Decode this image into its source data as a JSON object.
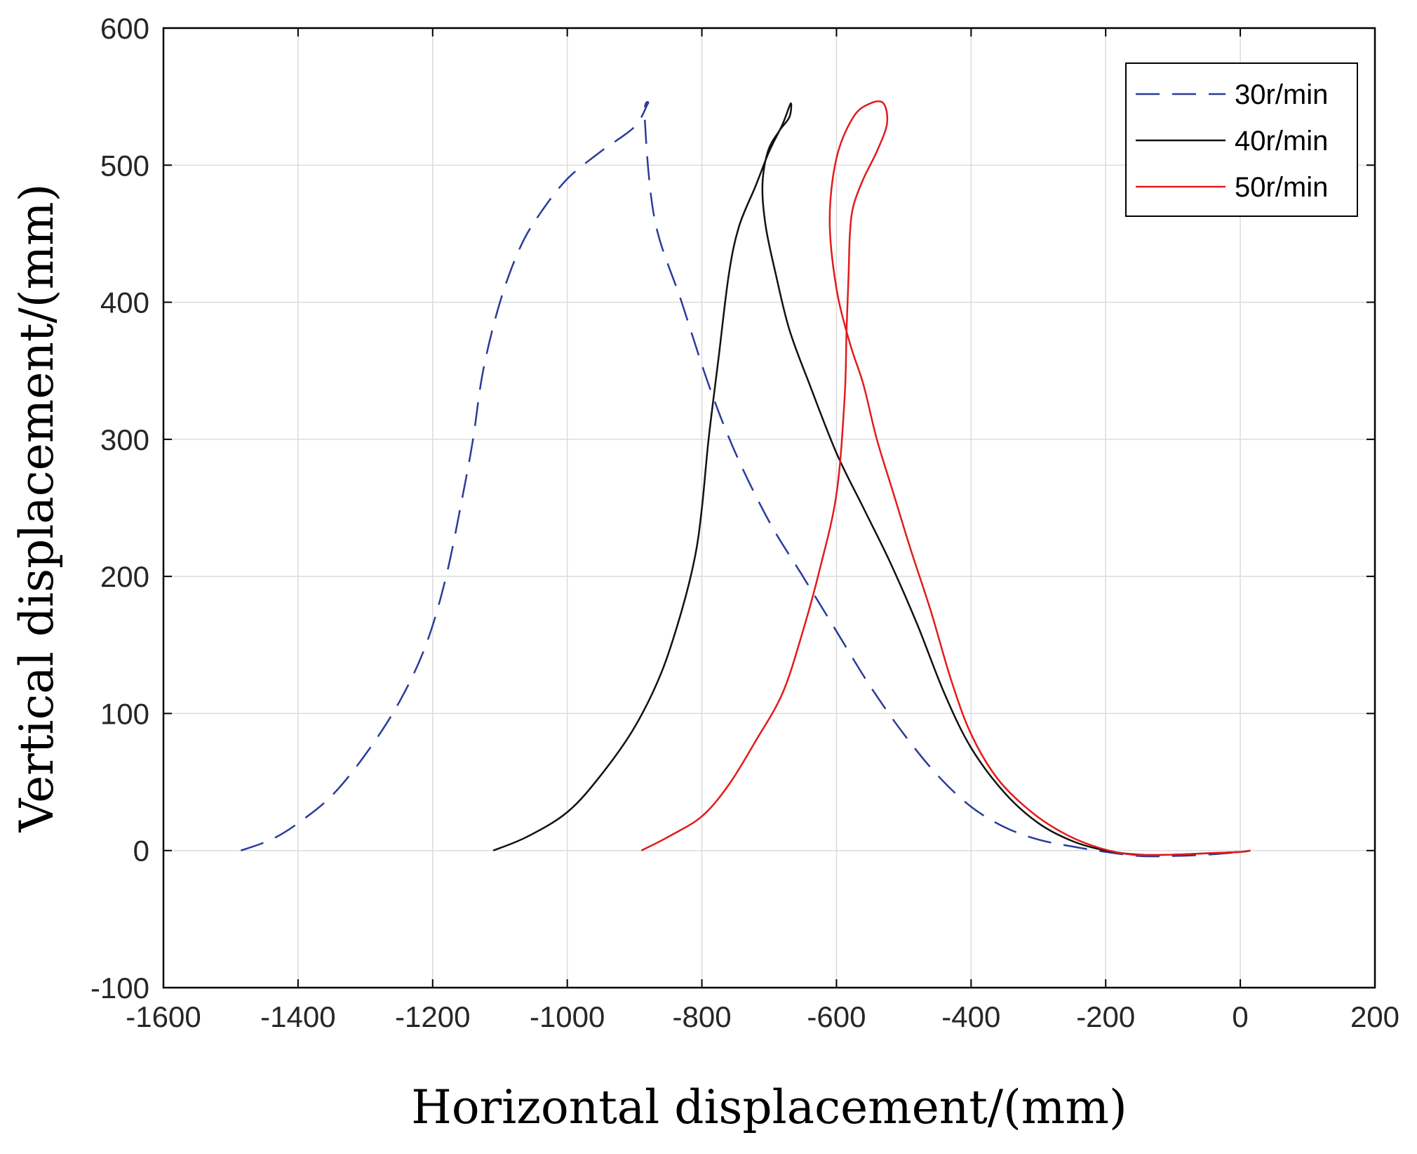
{
  "chart_data": {
    "type": "line",
    "title": "",
    "xlabel": "Horizontal displacement/(mm)",
    "ylabel": "Vertical displacement/(mm)",
    "xlim": [
      -1600,
      200
    ],
    "ylim": [
      -100,
      600
    ],
    "xticks": [
      -1600,
      -1400,
      -1200,
      -1000,
      -800,
      -600,
      -400,
      -200,
      0,
      200
    ],
    "yticks": [
      -100,
      0,
      100,
      200,
      300,
      400,
      500,
      600
    ],
    "grid": true,
    "legend_position": "top-right",
    "series": [
      {
        "name": "30r/min",
        "color": "#2a3b9a",
        "dash": "dashed",
        "points": [
          [
            -1485,
            0
          ],
          [
            -1440,
            8
          ],
          [
            -1400,
            20
          ],
          [
            -1350,
            40
          ],
          [
            -1300,
            70
          ],
          [
            -1250,
            108
          ],
          [
            -1210,
            150
          ],
          [
            -1180,
            200
          ],
          [
            -1155,
            260
          ],
          [
            -1140,
            300
          ],
          [
            -1125,
            350
          ],
          [
            -1100,
            400
          ],
          [
            -1070,
            440
          ],
          [
            -1040,
            465
          ],
          [
            -1000,
            490
          ],
          [
            -950,
            510
          ],
          [
            -900,
            528
          ],
          [
            -880,
            545
          ],
          [
            -885,
            535
          ],
          [
            -870,
            460
          ],
          [
            -830,
            400
          ],
          [
            -790,
            340
          ],
          [
            -750,
            290
          ],
          [
            -700,
            240
          ],
          [
            -650,
            200
          ],
          [
            -600,
            160
          ],
          [
            -550,
            120
          ],
          [
            -500,
            85
          ],
          [
            -450,
            55
          ],
          [
            -400,
            32
          ],
          [
            -350,
            17
          ],
          [
            -300,
            8
          ],
          [
            -250,
            3
          ],
          [
            -200,
            -1
          ],
          [
            -150,
            -4
          ],
          [
            -100,
            -4
          ],
          [
            -50,
            -3
          ],
          [
            0,
            -1
          ],
          [
            15,
            0
          ]
        ]
      },
      {
        "name": "40r/min",
        "color": "#111111",
        "dash": "solid",
        "points": [
          [
            -1110,
            0
          ],
          [
            -1060,
            10
          ],
          [
            -1000,
            28
          ],
          [
            -950,
            55
          ],
          [
            -900,
            90
          ],
          [
            -860,
            130
          ],
          [
            -830,
            175
          ],
          [
            -810,
            215
          ],
          [
            -800,
            250
          ],
          [
            -790,
            300
          ],
          [
            -775,
            360
          ],
          [
            -760,
            420
          ],
          [
            -745,
            455
          ],
          [
            -720,
            485
          ],
          [
            -700,
            510
          ],
          [
            -680,
            530
          ],
          [
            -668,
            545
          ],
          [
            -670,
            535
          ],
          [
            -685,
            525
          ],
          [
            -702,
            510
          ],
          [
            -710,
            485
          ],
          [
            -705,
            455
          ],
          [
            -690,
            420
          ],
          [
            -670,
            380
          ],
          [
            -640,
            340
          ],
          [
            -600,
            290
          ],
          [
            -560,
            250
          ],
          [
            -520,
            210
          ],
          [
            -480,
            165
          ],
          [
            -440,
            115
          ],
          [
            -400,
            75
          ],
          [
            -350,
            42
          ],
          [
            -300,
            20
          ],
          [
            -250,
            7
          ],
          [
            -200,
            0
          ],
          [
            -150,
            -3
          ],
          [
            -100,
            -3
          ],
          [
            -50,
            -2
          ],
          [
            0,
            -1
          ],
          [
            15,
            0
          ]
        ]
      },
      {
        "name": "50r/min",
        "color": "#e41a1a",
        "dash": "solid",
        "points": [
          [
            -890,
            0
          ],
          [
            -850,
            10
          ],
          [
            -800,
            25
          ],
          [
            -760,
            48
          ],
          [
            -720,
            80
          ],
          [
            -680,
            115
          ],
          [
            -650,
            160
          ],
          [
            -625,
            205
          ],
          [
            -600,
            260
          ],
          [
            -588,
            330
          ],
          [
            -585,
            380
          ],
          [
            -582,
            420
          ],
          [
            -580,
            450
          ],
          [
            -575,
            470
          ],
          [
            -560,
            490
          ],
          [
            -540,
            510
          ],
          [
            -525,
            530
          ],
          [
            -530,
            545
          ],
          [
            -550,
            545
          ],
          [
            -575,
            535
          ],
          [
            -600,
            505
          ],
          [
            -610,
            460
          ],
          [
            -600,
            410
          ],
          [
            -580,
            370
          ],
          [
            -560,
            340
          ],
          [
            -540,
            300
          ],
          [
            -515,
            260
          ],
          [
            -490,
            220
          ],
          [
            -460,
            175
          ],
          [
            -430,
            125
          ],
          [
            -400,
            85
          ],
          [
            -360,
            52
          ],
          [
            -310,
            28
          ],
          [
            -260,
            12
          ],
          [
            -210,
            2
          ],
          [
            -160,
            -3
          ],
          [
            -100,
            -3
          ],
          [
            -50,
            -2
          ],
          [
            0,
            -1
          ],
          [
            15,
            0
          ]
        ]
      }
    ]
  }
}
